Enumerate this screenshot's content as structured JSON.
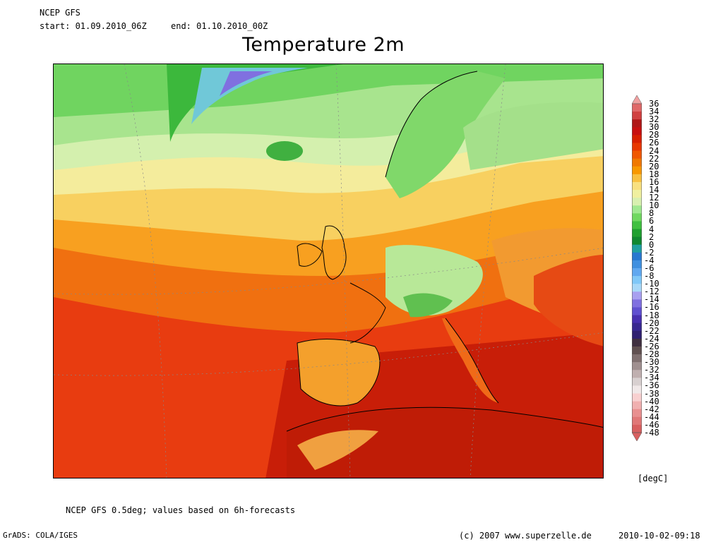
{
  "header": {
    "model": "NCEP GFS",
    "start": "start: 01.09.2010_06Z",
    "end": "end: 01.10.2010_00Z",
    "title": "Temperature 2m"
  },
  "legend": {
    "unit": "[degC]",
    "labels": [
      "36",
      "34",
      "32",
      "30",
      "28",
      "26",
      "24",
      "22",
      "20",
      "18",
      "16",
      "14",
      "12",
      "10",
      "8",
      "6",
      "4",
      "2",
      "0",
      "-2",
      "-4",
      "-6",
      "-8",
      "-10",
      "-12",
      "-14",
      "-16",
      "-18",
      "-20",
      "-22",
      "-24",
      "-26",
      "-28",
      "-30",
      "-32",
      "-34",
      "-36",
      "-38",
      "-40",
      "-42",
      "-44",
      "-46",
      "-48"
    ],
    "colors": [
      "#f0a0a0",
      "#e06868",
      "#d04040",
      "#b01818",
      "#c81010",
      "#d82000",
      "#e83800",
      "#f05800",
      "#f07800",
      "#f89800",
      "#f8c040",
      "#f8e080",
      "#f0f0a0",
      "#d8f0b0",
      "#a0e890",
      "#70d860",
      "#40c040",
      "#20a030",
      "#108830",
      "#20a0a0",
      "#2878d0",
      "#4090e0",
      "#60a8f0",
      "#80c8f8",
      "#a8d8f8",
      "#a8a0f0",
      "#8070e0",
      "#6050d0",
      "#4830b0",
      "#382890",
      "#302070",
      "#403040",
      "#605050",
      "#807070",
      "#a09090",
      "#c0b0b0",
      "#d8d0d0",
      "#f0e8e8",
      "#f8d0d0",
      "#f0b0b0",
      "#e89090",
      "#e07878",
      "#d86060"
    ]
  },
  "footer": {
    "note": "NCEP GFS 0.5deg; values based on 6h-forecasts",
    "grads": "GrADS: COLA/IGES",
    "copyright": "(c) 2007 www.superzelle.de",
    "timestamp": "2010-10-02-09:18"
  }
}
